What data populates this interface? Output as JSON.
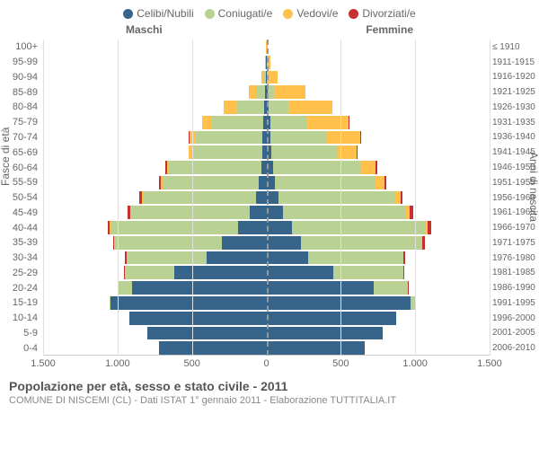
{
  "legend": [
    {
      "label": "Celibi/Nubili",
      "color": "#36648b"
    },
    {
      "label": "Coniugati/e",
      "color": "#b9d193"
    },
    {
      "label": "Vedovi/e",
      "color": "#ffc04c"
    },
    {
      "label": "Divorziati/e",
      "color": "#c73030"
    }
  ],
  "headers": {
    "left": "Maschi",
    "right": "Femmine"
  },
  "axis_titles": {
    "left": "Fasce di età",
    "right": "Anni di nascita"
  },
  "x_axis": {
    "max": 1500,
    "ticks": [
      "1.500",
      "1.000",
      "500",
      "0",
      "500",
      "1.000",
      "1.500"
    ]
  },
  "footer": {
    "title": "Popolazione per età, sesso e stato civile - 2011",
    "sub": "COMUNE DI NISCEMI (CL) - Dati ISTAT 1° gennaio 2011 - Elaborazione TUTTITALIA.IT"
  },
  "rows": [
    {
      "age": "100+",
      "year": "≤ 1910",
      "m": [
        0,
        0,
        2,
        0
      ],
      "f": [
        0,
        0,
        3,
        0
      ]
    },
    {
      "age": "95-99",
      "year": "1911-1915",
      "m": [
        2,
        0,
        8,
        0
      ],
      "f": [
        0,
        0,
        25,
        0
      ]
    },
    {
      "age": "90-94",
      "year": "1916-1920",
      "m": [
        5,
        8,
        20,
        0
      ],
      "f": [
        3,
        5,
        70,
        0
      ]
    },
    {
      "age": "85-89",
      "year": "1921-1925",
      "m": [
        10,
        60,
        50,
        0
      ],
      "f": [
        10,
        40,
        210,
        0
      ]
    },
    {
      "age": "80-84",
      "year": "1926-1930",
      "m": [
        15,
        190,
        80,
        0
      ],
      "f": [
        15,
        130,
        300,
        0
      ]
    },
    {
      "age": "75-79",
      "year": "1931-1935",
      "m": [
        20,
        350,
        60,
        0
      ],
      "f": [
        25,
        250,
        280,
        5
      ]
    },
    {
      "age": "70-74",
      "year": "1936-1940",
      "m": [
        25,
        450,
        40,
        5
      ],
      "f": [
        30,
        380,
        220,
        5
      ]
    },
    {
      "age": "65-69",
      "year": "1941-1945",
      "m": [
        25,
        470,
        25,
        5
      ],
      "f": [
        35,
        440,
        130,
        10
      ]
    },
    {
      "age": "60-64",
      "year": "1946-1950",
      "m": [
        35,
        620,
        15,
        10
      ],
      "f": [
        45,
        590,
        100,
        10
      ]
    },
    {
      "age": "55-59",
      "year": "1951-1955",
      "m": [
        50,
        650,
        10,
        10
      ],
      "f": [
        55,
        680,
        60,
        10
      ]
    },
    {
      "age": "50-54",
      "year": "1956-1960",
      "m": [
        70,
        760,
        8,
        15
      ],
      "f": [
        80,
        780,
        40,
        15
      ]
    },
    {
      "age": "45-49",
      "year": "1961-1965",
      "m": [
        110,
        800,
        5,
        15
      ],
      "f": [
        110,
        830,
        25,
        20
      ]
    },
    {
      "age": "40-44",
      "year": "1966-1970",
      "m": [
        190,
        860,
        3,
        15
      ],
      "f": [
        170,
        900,
        15,
        20
      ]
    },
    {
      "age": "35-39",
      "year": "1971-1975",
      "m": [
        300,
        720,
        2,
        10
      ],
      "f": [
        230,
        810,
        8,
        15
      ]
    },
    {
      "age": "30-34",
      "year": "1976-1980",
      "m": [
        400,
        540,
        0,
        8
      ],
      "f": [
        280,
        640,
        3,
        10
      ]
    },
    {
      "age": "25-29",
      "year": "1981-1985",
      "m": [
        620,
        330,
        0,
        5
      ],
      "f": [
        450,
        470,
        2,
        5
      ]
    },
    {
      "age": "20-24",
      "year": "1986-1990",
      "m": [
        900,
        100,
        0,
        0
      ],
      "f": [
        720,
        230,
        0,
        2
      ]
    },
    {
      "age": "15-19",
      "year": "1991-1995",
      "m": [
        1050,
        5,
        0,
        0
      ],
      "f": [
        970,
        30,
        0,
        0
      ]
    },
    {
      "age": "10-14",
      "year": "1996-2000",
      "m": [
        920,
        0,
        0,
        0
      ],
      "f": [
        870,
        0,
        0,
        0
      ]
    },
    {
      "age": "5-9",
      "year": "2001-2005",
      "m": [
        800,
        0,
        0,
        0
      ],
      "f": [
        780,
        0,
        0,
        0
      ]
    },
    {
      "age": "0-4",
      "year": "2006-2010",
      "m": [
        720,
        0,
        0,
        0
      ],
      "f": [
        660,
        0,
        0,
        0
      ]
    }
  ],
  "colors": {
    "grid": "#e0e0e0",
    "text": "#666666",
    "background": "#ffffff"
  }
}
